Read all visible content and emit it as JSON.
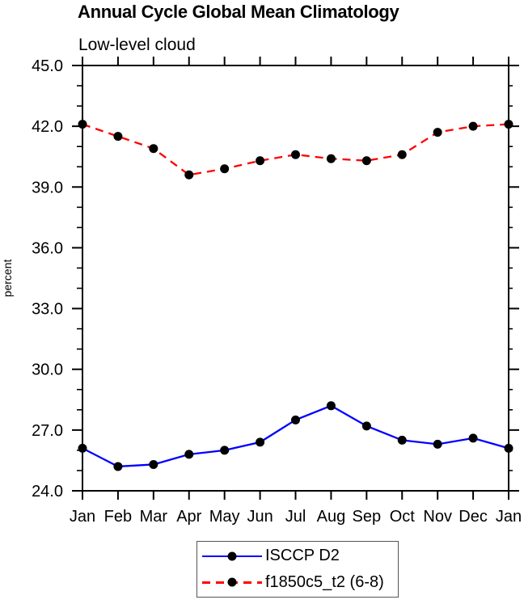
{
  "title": "Annual Cycle Global Mean Climatology",
  "subtitle": "Low-level cloud",
  "chart_data": {
    "type": "line",
    "x_categories": [
      "Jan",
      "Feb",
      "Mar",
      "Apr",
      "May",
      "Jun",
      "Jul",
      "Aug",
      "Sep",
      "Oct",
      "Nov",
      "Dec",
      "Jan"
    ],
    "ylabel": "percent",
    "ylim": [
      24.0,
      45.0
    ],
    "y_major_step": 3.0,
    "y_minor_step": 1.0,
    "y_tick_labels": [
      "24.0",
      "27.0",
      "30.0",
      "33.0",
      "36.0",
      "39.0",
      "42.0",
      "45.0"
    ],
    "grid": false,
    "legend_position": "bottom-center",
    "series": [
      {
        "name": "ISCCP D2",
        "line_style": "solid",
        "line_color": "#0000ff",
        "marker": "filled-circle",
        "marker_color": "#000000",
        "values": [
          26.1,
          25.2,
          25.3,
          25.8,
          26.0,
          26.4,
          27.5,
          28.2,
          27.2,
          26.5,
          26.3,
          26.6,
          26.1
        ]
      },
      {
        "name": "f1850c5_t2 (6-8)",
        "line_style": "dashed",
        "line_color": "#ff0000",
        "marker": "filled-circle",
        "marker_color": "#000000",
        "values": [
          42.1,
          41.5,
          40.9,
          39.6,
          39.9,
          40.3,
          40.6,
          40.4,
          40.3,
          40.6,
          41.7,
          42.0,
          42.1
        ]
      }
    ]
  },
  "colors": {
    "axis": "#000000",
    "text": "#000000",
    "legend_border": "#555555",
    "background": "#ffffff"
  }
}
